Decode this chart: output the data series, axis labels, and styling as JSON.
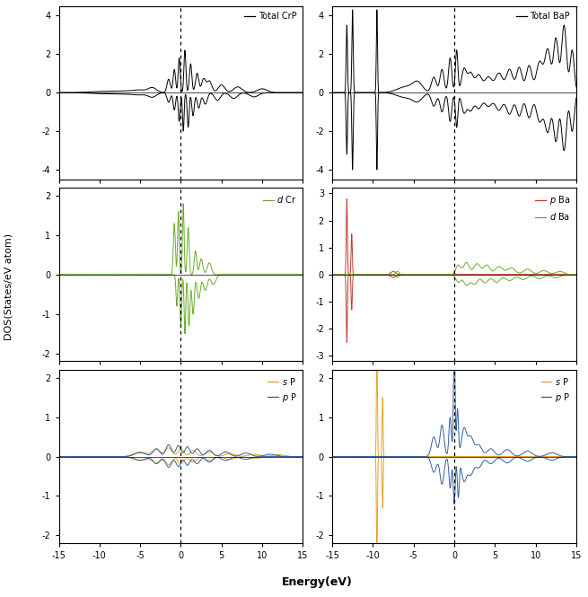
{
  "xlim": [
    -15,
    15
  ],
  "fermi_energy": 0.0,
  "left_panels": {
    "total_ylim": [
      -4.5,
      4.5
    ],
    "total_yticks": [
      -4,
      -2,
      0,
      2,
      4
    ],
    "total_label": "Total CrP",
    "partial1_ylim": [
      -2.2,
      2.2
    ],
    "partial1_yticks": [
      -2,
      -1,
      0,
      1,
      2
    ],
    "partial1_label": "d Cr",
    "partial1_color": "#6aaa2a",
    "partial2_ylim": [
      -2.2,
      2.2
    ],
    "partial2_yticks": [
      -2,
      -1,
      0,
      1,
      2
    ],
    "partial2a_label": "s P",
    "partial2a_color": "#e8a020",
    "partial2b_label": "p P",
    "partial2b_color": "#3060a0"
  },
  "right_panels": {
    "total_ylim": [
      -4.5,
      4.5
    ],
    "total_yticks": [
      -4,
      -2,
      0,
      2,
      4
    ],
    "total_label": "Total BaP",
    "partial1_ylim": [
      -3.2,
      3.2
    ],
    "partial1_yticks": [
      -3,
      -2,
      -1,
      0,
      1,
      2,
      3
    ],
    "partial1a_label": "p Ba",
    "partial1a_color": "#c0392b",
    "partial1b_label": "d Ba",
    "partial1b_color": "#6aaa2a",
    "partial2_ylim": [
      -2.2,
      2.2
    ],
    "partial2_yticks": [
      -2,
      -1,
      0,
      1,
      2
    ],
    "partial2a_label": "s P",
    "partial2a_color": "#e8a020",
    "partial2b_label": "p P",
    "partial2b_color": "#3060a0"
  },
  "ylabel": "DOS(States/eV atom)",
  "xlabel": "Energy(eV)",
  "xticks": [
    -15,
    -10,
    -5,
    0,
    5,
    10,
    15
  ],
  "background_color": "#ffffff"
}
